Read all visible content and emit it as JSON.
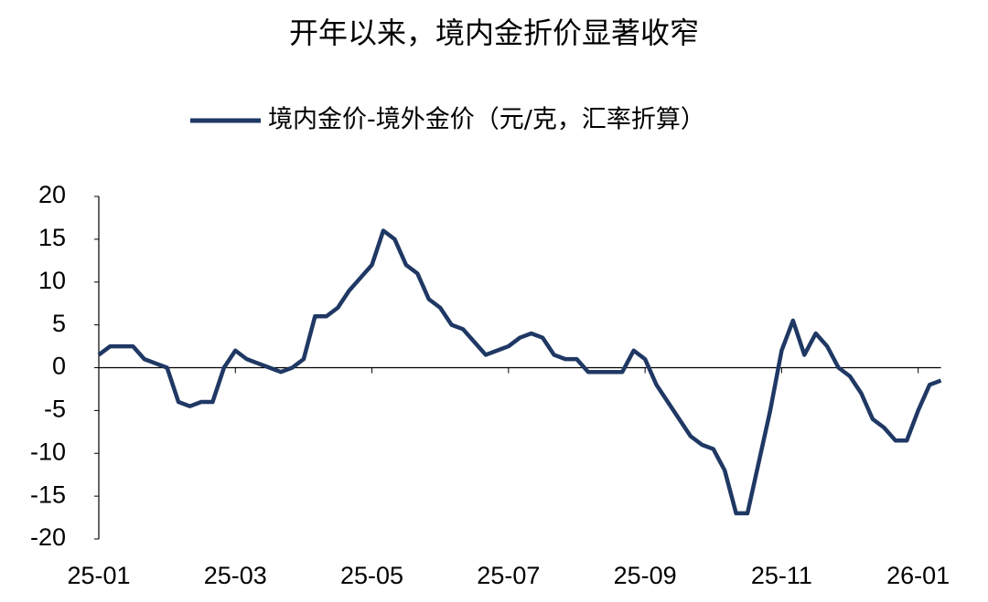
{
  "chart_data": {
    "type": "line",
    "title": "开年以来，境内金折价显著收窄",
    "categories": [
      "25-01",
      null,
      null,
      null,
      null,
      null,
      null,
      null,
      null,
      null,
      null,
      null,
      "25-03",
      null,
      null,
      null,
      null,
      null,
      null,
      null,
      null,
      null,
      null,
      null,
      "25-05",
      null,
      null,
      null,
      null,
      null,
      null,
      null,
      null,
      null,
      null,
      null,
      "25-07",
      null,
      null,
      null,
      null,
      null,
      null,
      null,
      null,
      null,
      null,
      null,
      "25-09",
      null,
      null,
      null,
      null,
      null,
      null,
      null,
      null,
      null,
      null,
      null,
      "25-11",
      null,
      null,
      null,
      null,
      null,
      null,
      null,
      null,
      null,
      null,
      null,
      "26-01",
      null,
      null
    ],
    "series": [
      {
        "name": "境内金价-境外金价（元/克，汇率折算）",
        "color": "#1f3864",
        "values": [
          1.5,
          2.5,
          2.5,
          2.5,
          1,
          0.5,
          0,
          -4,
          -4.5,
          -4,
          -4,
          0,
          2,
          1,
          0.5,
          0,
          -0.5,
          0,
          1,
          6,
          6,
          7,
          9,
          10.5,
          12,
          16,
          15,
          12,
          11,
          8,
          7,
          5,
          4.5,
          3,
          1.5,
          2,
          2.5,
          3.5,
          4,
          3.5,
          1.5,
          1,
          1,
          -0.5,
          -0.5,
          -0.5,
          -0.5,
          2,
          1,
          -2,
          -4,
          -6,
          -8,
          -9,
          -9.5,
          -12,
          -17,
          -17,
          -11,
          -5,
          2,
          5.5,
          1.5,
          4,
          2.5,
          0,
          -1,
          -3,
          -6,
          -7,
          -8.5,
          -8.5,
          -5,
          -2,
          -1.5
        ]
      }
    ],
    "ylim": [
      -20,
      20
    ],
    "yticks": [
      -20,
      -15,
      -10,
      -5,
      0,
      5,
      10,
      15,
      20
    ],
    "grid": false,
    "legend": "top"
  }
}
